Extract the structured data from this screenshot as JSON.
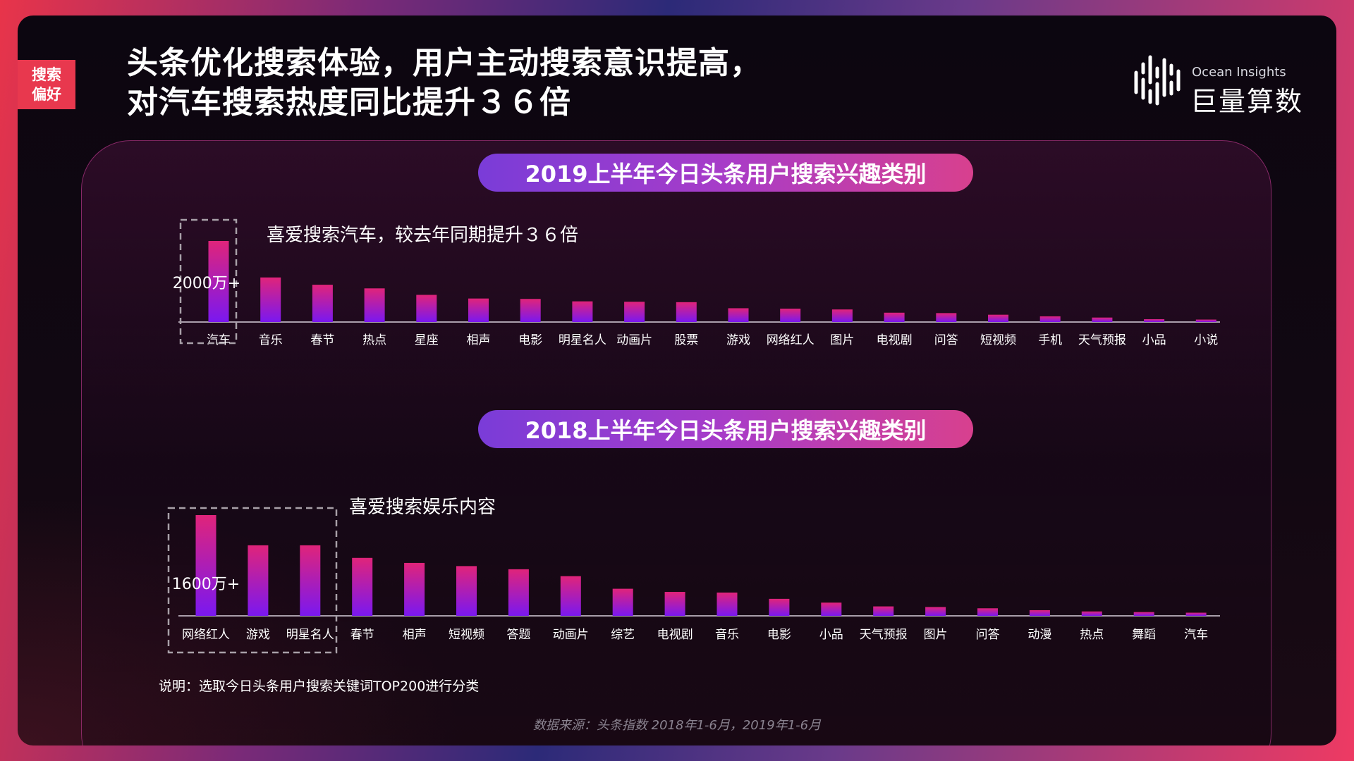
{
  "tag": {
    "line1": "搜索",
    "line2": "偏好"
  },
  "headline": {
    "line1": "头条优化搜索体验，用户主动搜索意识提高，",
    "line2": "对汽车搜索热度同比提升３６倍"
  },
  "logo": {
    "en": "Ocean Insights",
    "cn": "巨量算数"
  },
  "note": "说明：选取今日头条用户搜索关键词TOP200进行分类",
  "source": "数据来源：头条指数 2018年1-6月，2019年1-6月",
  "colors": {
    "bar_top": "#e0247a",
    "bar_bottom": "#7a18f0",
    "accent": "#e8384e"
  },
  "chart_data": [
    {
      "type": "bar",
      "title": "2019上半年今日头条用户搜索兴趣类别",
      "annotation": "喜爱搜索汽车，较去年同期提升３６倍",
      "value_label": "2000万+",
      "categories": [
        "汽车",
        "音乐",
        "春节",
        "热点",
        "星座",
        "相声",
        "电影",
        "明星名人",
        "动画片",
        "股票",
        "游戏",
        "网络红人",
        "图片",
        "电视剧",
        "问答",
        "短视频",
        "手机",
        "天气预报",
        "小品",
        "小说"
      ],
      "values": [
        2000,
        1100,
        920,
        830,
        670,
        580,
        570,
        510,
        500,
        490,
        340,
        330,
        310,
        230,
        220,
        180,
        140,
        110,
        70,
        60
      ],
      "highlight": [
        "汽车"
      ]
    },
    {
      "type": "bar",
      "title": "2018上半年今日头条用户搜索兴趣类别",
      "annotation": "喜爱搜索娱乐内容",
      "value_label": "1600万+",
      "categories": [
        "网络红人",
        "游戏",
        "明星名人",
        "春节",
        "相声",
        "短视频",
        "答题",
        "动画片",
        "综艺",
        "电视剧",
        "音乐",
        "电影",
        "小品",
        "天气预报",
        "图片",
        "问答",
        "动漫",
        "热点",
        "舞蹈",
        "汽车"
      ],
      "values": [
        1600,
        1120,
        1120,
        920,
        840,
        790,
        740,
        630,
        430,
        380,
        370,
        270,
        210,
        150,
        140,
        120,
        90,
        70,
        60,
        50
      ],
      "highlight": [
        "网络红人",
        "游戏",
        "明星名人"
      ]
    }
  ]
}
